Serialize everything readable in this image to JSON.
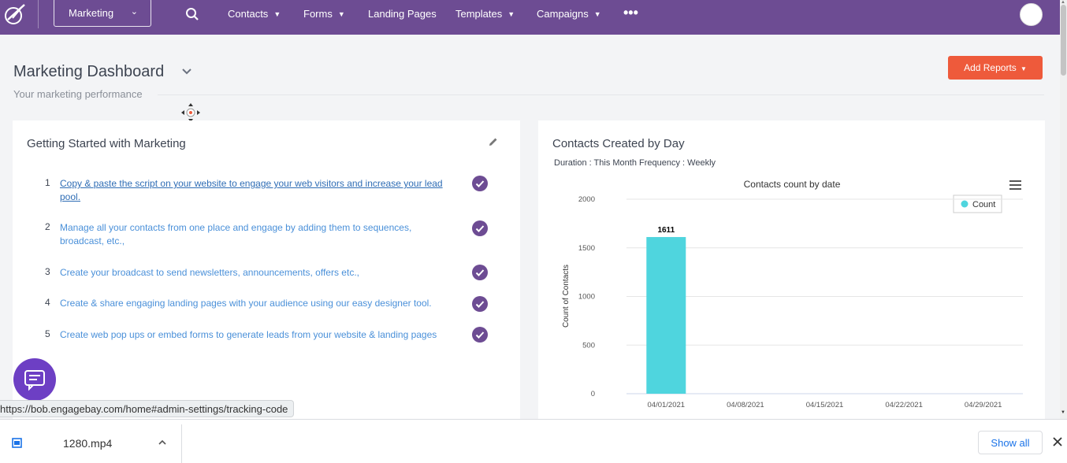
{
  "topnav": {
    "app_selector": "Marketing",
    "items": [
      {
        "label": "Contacts",
        "has_caret": true
      },
      {
        "label": "Forms",
        "has_caret": true
      },
      {
        "label": "Landing Pages",
        "has_caret": false
      },
      {
        "label": "Templates",
        "has_caret": true
      },
      {
        "label": "Campaigns",
        "has_caret": true
      }
    ],
    "more_label": "•••",
    "color": "#6d4c93"
  },
  "header": {
    "title": "Marketing Dashboard",
    "subtitle": "Your marketing performance",
    "add_reports_label": "Add Reports",
    "add_reports_color": "#ee5a3b"
  },
  "getting_started": {
    "title": "Getting Started with Marketing",
    "tasks": [
      {
        "num": "1",
        "text": "Copy & paste the script on your website to engage your web visitors and increase your lead pool.",
        "done": true
      },
      {
        "num": "2",
        "text": "Manage all your contacts from one place and engage by adding them to sequences, broadcast, etc.,",
        "done": true
      },
      {
        "num": "3",
        "text": "Create your broadcast to send newsletters, announcements, offers etc.,",
        "done": true
      },
      {
        "num": "4",
        "text": "Create & share engaging landing pages with your audience using our easy designer tool.",
        "done": true
      },
      {
        "num": "5",
        "text": "Create web pop ups or embed forms to generate leads from your website & landing pages",
        "done": true
      }
    ]
  },
  "contacts_card": {
    "title": "Contacts Created by Day",
    "duration": "Duration : This Month Frequency : Weekly"
  },
  "chart_data": {
    "type": "bar",
    "title": "Contacts count by date",
    "ylabel": "Count of Contacts",
    "xlabel": "",
    "categories": [
      "04/01/2021",
      "04/08/2021",
      "04/15/2021",
      "04/22/2021",
      "04/29/2021"
    ],
    "series": [
      {
        "name": "Count",
        "values": [
          1611,
          0,
          0,
          0,
          0
        ],
        "color": "#4fd5de"
      }
    ],
    "data_label": "1611",
    "ylim": [
      0,
      2000
    ],
    "yticks": [
      "0",
      "500",
      "1000",
      "1500",
      "2000"
    ],
    "grid": true,
    "legend": "top-right"
  },
  "status_url": "https://bob.engagebay.com/home#admin-settings/tracking-code",
  "download_bar": {
    "filename": "1280.mp4",
    "show_all_label": "Show all"
  }
}
